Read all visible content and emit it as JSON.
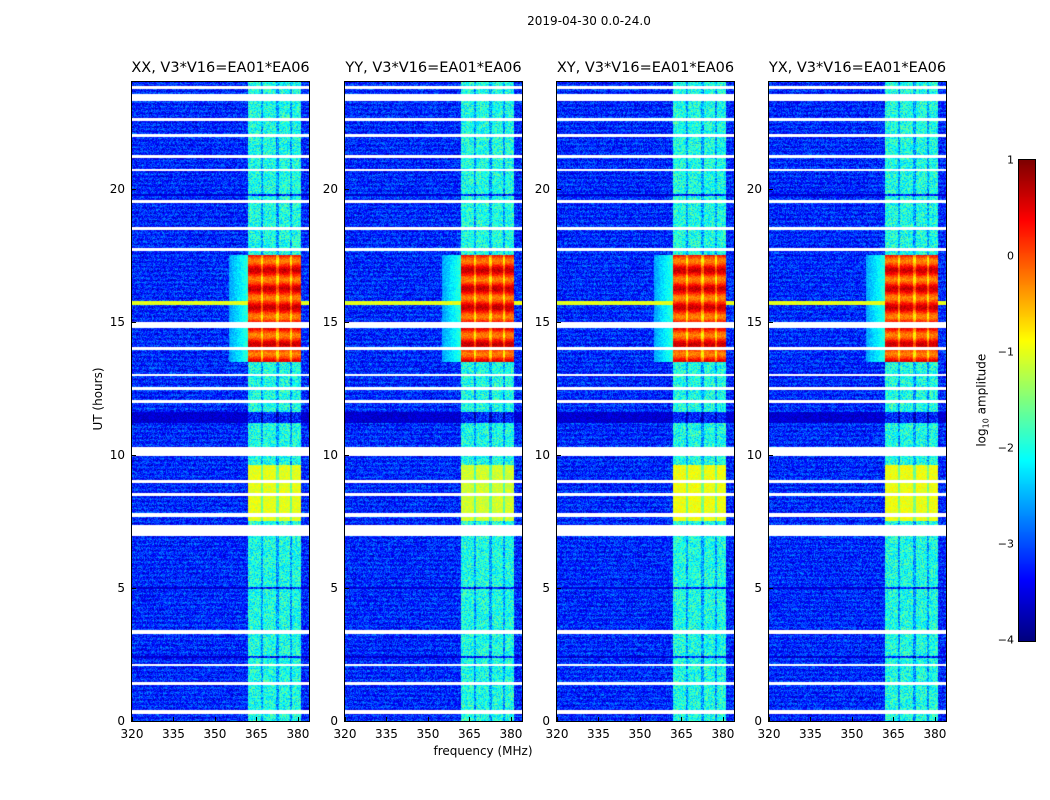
{
  "chart_data": {
    "type": "heatmap",
    "title": "2019-04-30 0.0-24.0",
    "xlabel": "frequency (MHz)",
    "ylabel": "UT (hours)",
    "xlim": [
      320,
      384
    ],
    "ylim": [
      0,
      24
    ],
    "xticks": [
      "320",
      "335",
      "350",
      "365",
      "380"
    ],
    "yticks": [
      "0",
      "5",
      "10",
      "15",
      "20"
    ],
    "panels": [
      {
        "title": "XX, V3*V16=EA01*EA06",
        "rfi_scale": 1.0
      },
      {
        "title": "YY, V3*V16=EA01*EA06",
        "rfi_scale": 1.1
      },
      {
        "title": "XY, V3*V16=EA01*EA06",
        "rfi_scale": 0.95
      },
      {
        "title": "YX, V3*V16=EA01*EA06",
        "rfi_scale": 0.95
      }
    ],
    "background_log_amp": -3.2,
    "rfi_band_mhz": [
      362,
      381
    ],
    "rfi_subband_gaps_mhz": [
      367,
      372.5,
      377.5
    ],
    "rfi_periods": [
      {
        "hours": [
          13.5,
          17.5
        ],
        "log_amp": 0.2
      },
      {
        "hours": [
          7.5,
          9.6
        ],
        "log_amp": -1.0
      }
    ],
    "rfi_default_log_amp": -2.0,
    "broadband_line_hours": 15.7,
    "flagged_hours": [
      [
        0.25,
        0.4
      ],
      [
        1.35,
        1.45
      ],
      [
        2.05,
        2.15
      ],
      [
        3.25,
        3.4
      ],
      [
        6.95,
        7.35
      ],
      [
        7.65,
        7.8
      ],
      [
        8.45,
        8.55
      ],
      [
        8.95,
        9.05
      ],
      [
        9.95,
        10.3
      ],
      [
        11.95,
        12.05
      ],
      [
        12.45,
        12.55
      ],
      [
        12.95,
        13.05
      ],
      [
        13.95,
        14.05
      ],
      [
        14.75,
        15.0
      ],
      [
        17.65,
        17.75
      ],
      [
        18.45,
        18.55
      ],
      [
        19.45,
        19.55
      ],
      [
        20.65,
        20.75
      ],
      [
        21.15,
        21.25
      ],
      [
        21.95,
        22.05
      ],
      [
        22.55,
        22.65
      ],
      [
        23.3,
        23.55
      ],
      [
        23.75,
        23.85
      ]
    ],
    "dark_hours": [
      [
        2.35,
        2.45
      ],
      [
        4.95,
        5.05
      ],
      [
        11.2,
        11.6
      ],
      [
        19.7,
        19.8
      ]
    ],
    "colorbar": {
      "label": "log10 amplitude",
      "label_main": "log",
      "label_sub": "10",
      "label_rest": " amplitude",
      "vmin": -4,
      "vmax": 1,
      "ticks": [
        "1",
        "0",
        "−1",
        "−2",
        "−3",
        "−4"
      ],
      "tick_values": [
        1,
        0,
        -1,
        -2,
        -3,
        -4
      ],
      "colormap": "jet"
    }
  }
}
